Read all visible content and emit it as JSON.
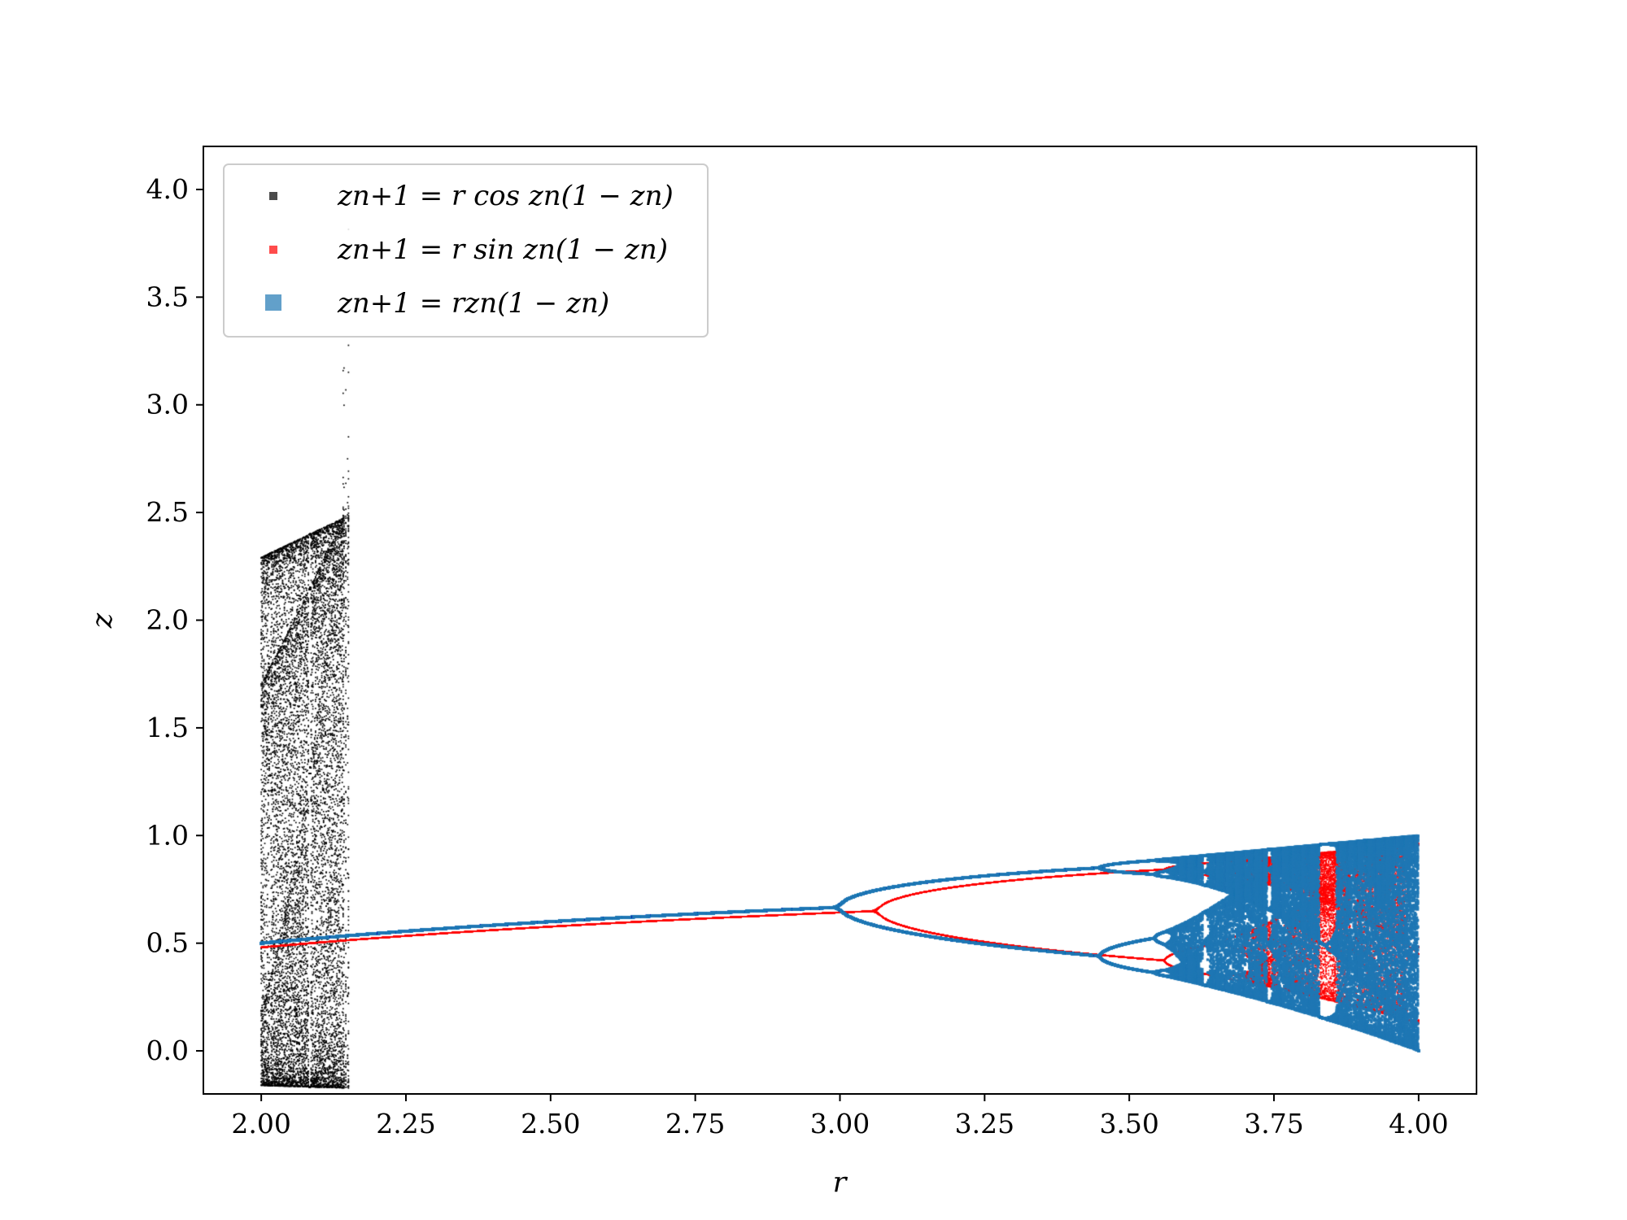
{
  "chart_data": {
    "type": "scatter",
    "title": "",
    "xlabel": "r",
    "ylabel": "z",
    "xlim": [
      1.9,
      4.1
    ],
    "ylim": [
      -0.2,
      4.2
    ],
    "x_ticks": [
      "2.00",
      "2.25",
      "2.50",
      "2.75",
      "3.00",
      "3.25",
      "3.50",
      "3.75",
      "4.00"
    ],
    "y_ticks": [
      "0.0",
      "0.5",
      "1.0",
      "1.5",
      "2.0",
      "2.5",
      "3.0",
      "3.5",
      "4.0"
    ],
    "grid": false,
    "legend_position": "top-left",
    "r_range": [
      2.0,
      4.0
    ],
    "series": [
      {
        "name": "z_{n+1} = r cos z_n(1 − z_n)",
        "label": "zn+1 = r cos zn(1 − zn)",
        "map": "cos",
        "color": "#000000",
        "marker": "square-small"
      },
      {
        "name": "z_{n+1} = r sin z_n(1 − z_n)",
        "label": "zn+1 = r sin zn(1 − zn)",
        "map": "sin",
        "color": "#ff0000",
        "marker": "square-small"
      },
      {
        "name": "z_{n+1} = r z_n(1 − z_n)",
        "label": "zn+1 = rzn(1 − zn)",
        "map": "logistic",
        "color": "#1f77b4",
        "marker": "square-large"
      }
    ]
  }
}
